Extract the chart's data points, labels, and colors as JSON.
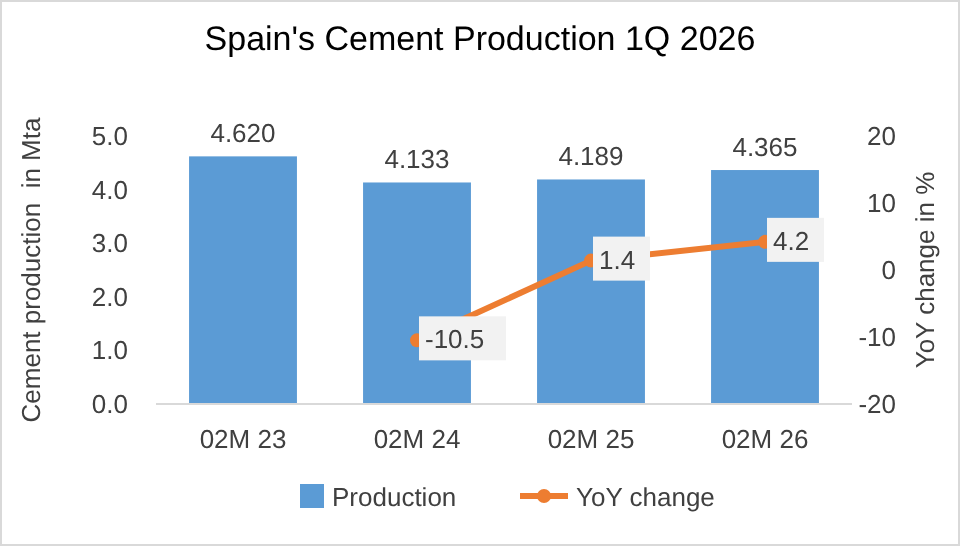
{
  "chart_data": {
    "type": "bar",
    "title": "Spain's Cement Production 1Q 2026",
    "ylabel": "Cement production  in Mta",
    "y2label": "YoY change in %",
    "categories": [
      "02M 23",
      "02M 24",
      "02M 25",
      "02M 26"
    ],
    "series": [
      {
        "name": "Production",
        "color": "#5b9bd5",
        "values": [
          4.62,
          4.133,
          4.189,
          4.365
        ],
        "value_labels": [
          "4.620",
          "4.133",
          "4.189",
          "4.365"
        ]
      },
      {
        "name": "YoY change",
        "type": "line",
        "axis": "y2",
        "color": "#ed7d31",
        "marker": "circle",
        "values": [
          null,
          -10.5,
          1.4,
          4.2
        ],
        "value_labels": [
          null,
          "-10.5",
          "1.4",
          "4.2"
        ]
      }
    ],
    "ylim": [
      0,
      5
    ],
    "yticks": [
      {
        "value": 0,
        "label": "0.0"
      },
      {
        "value": 1,
        "label": "1.0"
      },
      {
        "value": 2,
        "label": "2.0"
      },
      {
        "value": 3,
        "label": "3.0"
      },
      {
        "value": 4,
        "label": "4.0"
      },
      {
        "value": 5,
        "label": "5.0"
      }
    ],
    "y2lim": [
      -20,
      20
    ],
    "y2ticks": [
      -20,
      -10,
      0,
      10,
      20
    ],
    "legend": "bottom"
  }
}
